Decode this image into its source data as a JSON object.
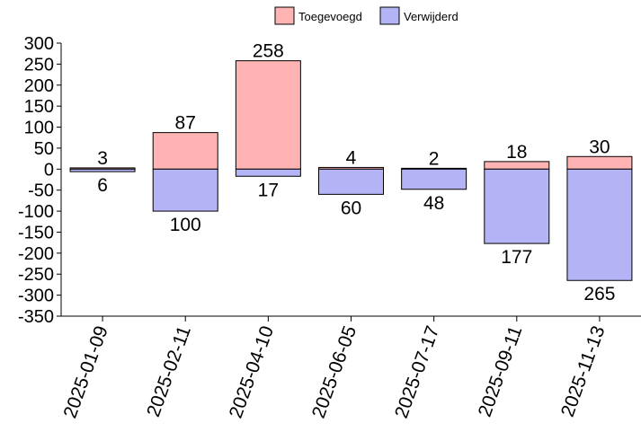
{
  "chart_data": {
    "type": "bar",
    "categories": [
      "2025-01-09",
      "2025-02-11",
      "2025-04-10",
      "2025-06-05",
      "2025-07-17",
      "2025-09-11",
      "2025-11-13"
    ],
    "series": [
      {
        "name": "Toegevoegd",
        "values": [
          3,
          87,
          258,
          4,
          2,
          18,
          30
        ],
        "color": "#ffb3b3"
      },
      {
        "name": "Verwijderd",
        "values": [
          -6,
          -100,
          -17,
          -60,
          -48,
          -177,
          -265
        ],
        "color": "#b3b3f5"
      }
    ],
    "ylim": [
      -350,
      300
    ],
    "yticks": [
      300,
      250,
      200,
      150,
      100,
      50,
      0,
      -50,
      -100,
      -150,
      -200,
      -250,
      -300,
      -350
    ],
    "grid": false,
    "legend_position": "top-right",
    "title": "",
    "xlabel": "",
    "ylabel": ""
  }
}
